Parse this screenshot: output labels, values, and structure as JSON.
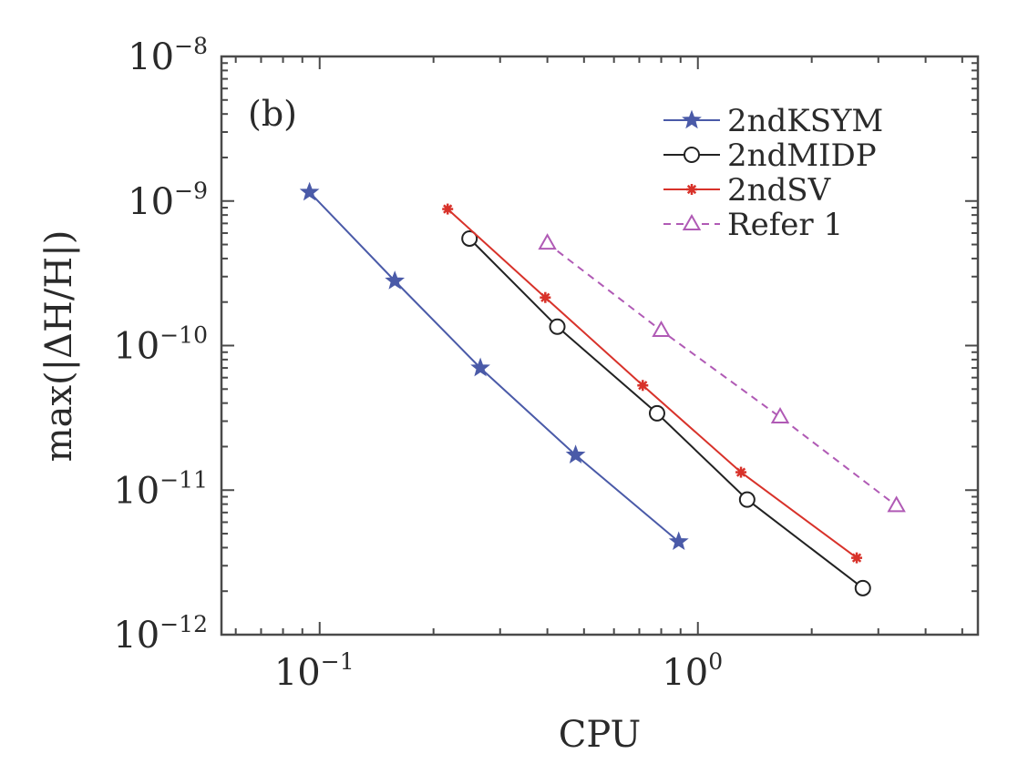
{
  "chart_data": {
    "type": "line",
    "panel_label": "(b)",
    "xlabel": "CPU",
    "ylabel": "max(|ΔH/H|)",
    "x_scale": "log",
    "y_scale": "log",
    "xlim": [
      0.055,
      5.5
    ],
    "ylim": [
      1e-12,
      1e-08
    ],
    "x_ticks": [
      {
        "value": 0.1,
        "base": "10",
        "exp": "−1"
      },
      {
        "value": 1,
        "base": "10",
        "exp": "0"
      }
    ],
    "y_ticks": [
      {
        "value": 1e-08,
        "base": "10",
        "exp": "−8"
      },
      {
        "value": 1e-09,
        "base": "10",
        "exp": "−9"
      },
      {
        "value": 1e-10,
        "base": "10",
        "exp": "−10"
      },
      {
        "value": 1e-11,
        "base": "10",
        "exp": "−11"
      },
      {
        "value": 1e-12,
        "base": "10",
        "exp": "−12"
      }
    ],
    "legend_position": "top-right",
    "series": [
      {
        "name": "2ndKSYM",
        "color": "#4a5aa8",
        "marker": "star",
        "dashed": false,
        "x": [
          0.094,
          0.158,
          0.266,
          0.475,
          0.89
        ],
        "y": [
          1.15e-09,
          2.8e-10,
          7e-11,
          1.75e-11,
          4.4e-12
        ]
      },
      {
        "name": "2ndMIDP",
        "color": "#222222",
        "marker": "circle",
        "dashed": false,
        "x": [
          0.249,
          0.425,
          0.78,
          1.35,
          2.73
        ],
        "y": [
          5.5e-10,
          1.35e-10,
          3.4e-11,
          8.6e-12,
          2.1e-12
        ]
      },
      {
        "name": "2ndSV",
        "color": "#d8322a",
        "marker": "asterisk",
        "dashed": false,
        "x": [
          0.218,
          0.395,
          0.715,
          1.3,
          2.63
        ],
        "y": [
          8.8e-10,
          2.15e-10,
          5.3e-11,
          1.33e-11,
          3.4e-12
        ]
      },
      {
        "name": "Refer 1",
        "color": "#b05ab5",
        "marker": "triangle",
        "dashed": true,
        "x": [
          0.4,
          0.8,
          1.65,
          3.35
        ],
        "y": [
          5.1e-10,
          1.27e-10,
          3.2e-11,
          7.8e-12
        ]
      }
    ]
  }
}
